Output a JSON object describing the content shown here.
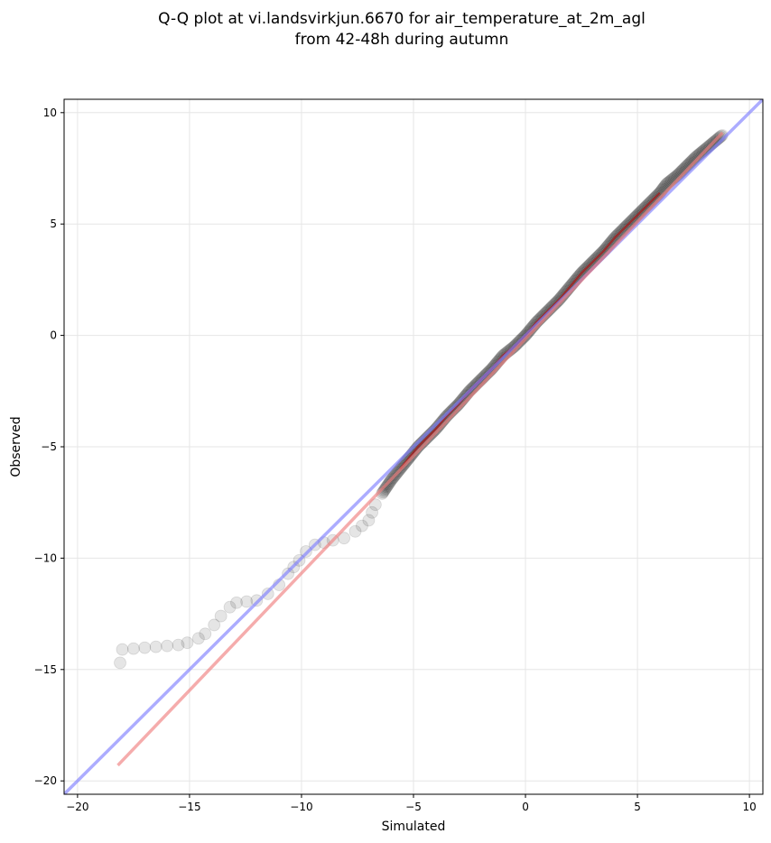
{
  "chart_data": {
    "type": "scatter",
    "title_lines": [
      "Q-Q plot at vi.landsvirkjun.6670 for air_temperature_at_2m_agl",
      "from 42-48h during autumn"
    ],
    "xlabel": "Simulated",
    "ylabel": "Observed",
    "xlim": [
      -20.6,
      10.6
    ],
    "ylim": [
      -20.6,
      10.6
    ],
    "xticks": [
      -20,
      -15,
      -10,
      -5,
      0,
      5,
      10
    ],
    "yticks": [
      -20,
      -15,
      -10,
      -5,
      0,
      5,
      10
    ],
    "xtick_labels": [
      "−20",
      "−15",
      "−10",
      "−5",
      "0",
      "5",
      "10"
    ],
    "ytick_labels": [
      "−20",
      "−15",
      "−10",
      "−5",
      "0",
      "5",
      "10"
    ],
    "grid": true,
    "identity_line": {
      "color": "#8080ff"
    },
    "fit_line": {
      "color": "#f08080",
      "x": [
        -18.2,
        8.8
      ],
      "y": [
        -19.3,
        9.1
      ]
    },
    "colors": {
      "points": "#000000",
      "dense_trace": "#c00000"
    },
    "quantile_curve": {
      "x": [
        -18.1,
        -18.0,
        -15.5,
        -15.1,
        -14.6,
        -14.3,
        -13.9,
        -13.6,
        -13.2,
        -12.9,
        -12.0,
        -11.5,
        -11.0,
        -10.6,
        -10.1,
        -9.8,
        -9.4,
        -9.0,
        -8.6,
        -8.1,
        -7.6,
        -7.0,
        -6.7,
        -6.4,
        -6.2,
        -6.0,
        -5.6,
        -5.2,
        -4.8,
        -4.4,
        -4.0,
        -3.5,
        -3.0,
        -2.5,
        -2.0,
        -1.5,
        -1.0,
        -0.5,
        0.0,
        0.5,
        1.0,
        1.5,
        2.0,
        2.5,
        3.0,
        3.5,
        4.0,
        4.5,
        5.0,
        5.5,
        6.0,
        6.3,
        6.8,
        7.2,
        7.6,
        8.2,
        8.8
      ],
      "y": [
        -14.7,
        -14.1,
        -13.9,
        -13.8,
        -13.6,
        -13.4,
        -13.0,
        -12.6,
        -12.2,
        -12.0,
        -11.9,
        -11.6,
        -11.2,
        -10.7,
        -10.1,
        -9.7,
        -9.4,
        -9.3,
        -9.2,
        -9.1,
        -8.8,
        -8.3,
        -7.6,
        -7.1,
        -6.8,
        -6.5,
        -6.0,
        -5.5,
        -5.0,
        -4.6,
        -4.2,
        -3.6,
        -3.1,
        -2.5,
        -2.0,
        -1.5,
        -0.9,
        -0.5,
        0.0,
        0.6,
        1.1,
        1.6,
        2.2,
        2.8,
        3.3,
        3.8,
        4.4,
        4.9,
        5.4,
        5.9,
        6.4,
        6.8,
        7.2,
        7.6,
        8.0,
        8.5,
        9.0
      ]
    }
  }
}
